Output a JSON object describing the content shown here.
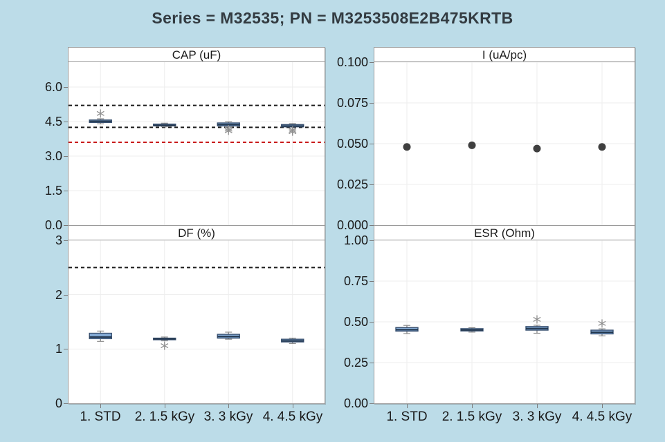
{
  "title": "Series = M32535; PN = M3253508E2B475KRTB",
  "categories": [
    "1. STD",
    "2. 1.5 kGy",
    "3. 3 kGy",
    "4. 4.5 kGy"
  ],
  "colors": {
    "background": "#bcdce8",
    "panel_bg": "#ffffff",
    "panel_border": "#9a9a9a",
    "grid": "#ededed",
    "text": "#1a1a1a",
    "title_text": "#333b41",
    "box_fill_top": "#8fb4de",
    "box_fill_bottom": "#6e98c6",
    "box_stroke": "#3a5272",
    "median": "#24384f",
    "whisker": "#8c8c8c",
    "point": "#3f3f3f",
    "outlier": "#8f8f8f",
    "ref_black": "#1a1a1a",
    "ref_red": "#c91a1a"
  },
  "chart_data": [
    {
      "id": "cap",
      "type": "box",
      "title": "CAP (uF)",
      "column": 0,
      "row": 0,
      "ylim": [
        0,
        7.08
      ],
      "ytick_values": [
        0,
        1.5,
        3,
        4.5,
        6
      ],
      "yticks": [
        "0.0",
        "1.5",
        "3.0",
        "4.5",
        "6.0"
      ],
      "ref_lines": [
        {
          "value": 5.2,
          "color": "#1a1a1a",
          "style": "dashed"
        },
        {
          "value": 4.25,
          "color": "#1a1a1a",
          "style": "dashed"
        },
        {
          "value": 3.6,
          "color": "#c91a1a",
          "style": "dashed"
        }
      ],
      "boxes": [
        {
          "lo": 4.4,
          "q1": 4.46,
          "med": 4.51,
          "q3": 4.57,
          "hi": 4.62,
          "outliers": [
            4.85
          ]
        },
        {
          "lo": 4.27,
          "q1": 4.31,
          "med": 4.34,
          "q3": 4.39,
          "hi": 4.43,
          "outliers": []
        },
        {
          "lo": 4.26,
          "q1": 4.31,
          "med": 4.37,
          "q3": 4.44,
          "hi": 4.49,
          "outliers": [
            4.17,
            4.1
          ]
        },
        {
          "lo": 4.22,
          "q1": 4.27,
          "med": 4.31,
          "q3": 4.37,
          "hi": 4.41,
          "outliers": [
            4.12,
            4.06
          ]
        }
      ]
    },
    {
      "id": "i",
      "type": "points",
      "title": "I (uA/pc)",
      "column": 1,
      "row": 0,
      "ylim": [
        0,
        0.1
      ],
      "ytick_values": [
        0,
        0.025,
        0.05,
        0.075,
        0.1
      ],
      "yticks": [
        "0.000",
        "0.025",
        "0.050",
        "0.075",
        "0.100"
      ],
      "ref_lines": [],
      "values": [
        0.048,
        0.049,
        0.047,
        0.048
      ]
    },
    {
      "id": "df",
      "type": "box",
      "title": "DF (%)",
      "column": 0,
      "row": 1,
      "ylim": [
        0,
        3
      ],
      "ytick_values": [
        0,
        1,
        2,
        3
      ],
      "yticks": [
        "0",
        "1",
        "2",
        "3"
      ],
      "ref_lines": [
        {
          "value": 2.5,
          "color": "#1a1a1a",
          "style": "dashed"
        }
      ],
      "boxes": [
        {
          "lo": 1.14,
          "q1": 1.19,
          "med": 1.22,
          "q3": 1.29,
          "hi": 1.33,
          "outliers": []
        },
        {
          "lo": 1.15,
          "q1": 1.17,
          "med": 1.185,
          "q3": 1.2,
          "hi": 1.22,
          "outliers": [
            1.06
          ]
        },
        {
          "lo": 1.18,
          "q1": 1.2,
          "med": 1.23,
          "q3": 1.27,
          "hi": 1.31,
          "outliers": []
        },
        {
          "lo": 1.1,
          "q1": 1.13,
          "med": 1.15,
          "q3": 1.18,
          "hi": 1.2,
          "outliers": []
        }
      ]
    },
    {
      "id": "esr",
      "type": "box",
      "title": "ESR (Ohm)",
      "column": 1,
      "row": 1,
      "ylim": [
        0,
        1
      ],
      "ytick_values": [
        0,
        0.25,
        0.5,
        0.75,
        1.0
      ],
      "yticks": [
        "0.00",
        "0.25",
        "0.50",
        "0.75",
        "1.00"
      ],
      "ref_lines": [],
      "boxes": [
        {
          "lo": 0.428,
          "q1": 0.443,
          "med": 0.452,
          "q3": 0.465,
          "hi": 0.478,
          "outliers": []
        },
        {
          "lo": 0.437,
          "q1": 0.444,
          "med": 0.45,
          "q3": 0.458,
          "hi": 0.464,
          "outliers": []
        },
        {
          "lo": 0.43,
          "q1": 0.449,
          "med": 0.459,
          "q3": 0.471,
          "hi": 0.479,
          "outliers": [
            0.515
          ]
        },
        {
          "lo": 0.414,
          "q1": 0.426,
          "med": 0.436,
          "q3": 0.449,
          "hi": 0.457,
          "outliers": [
            0.49
          ]
        }
      ]
    }
  ]
}
